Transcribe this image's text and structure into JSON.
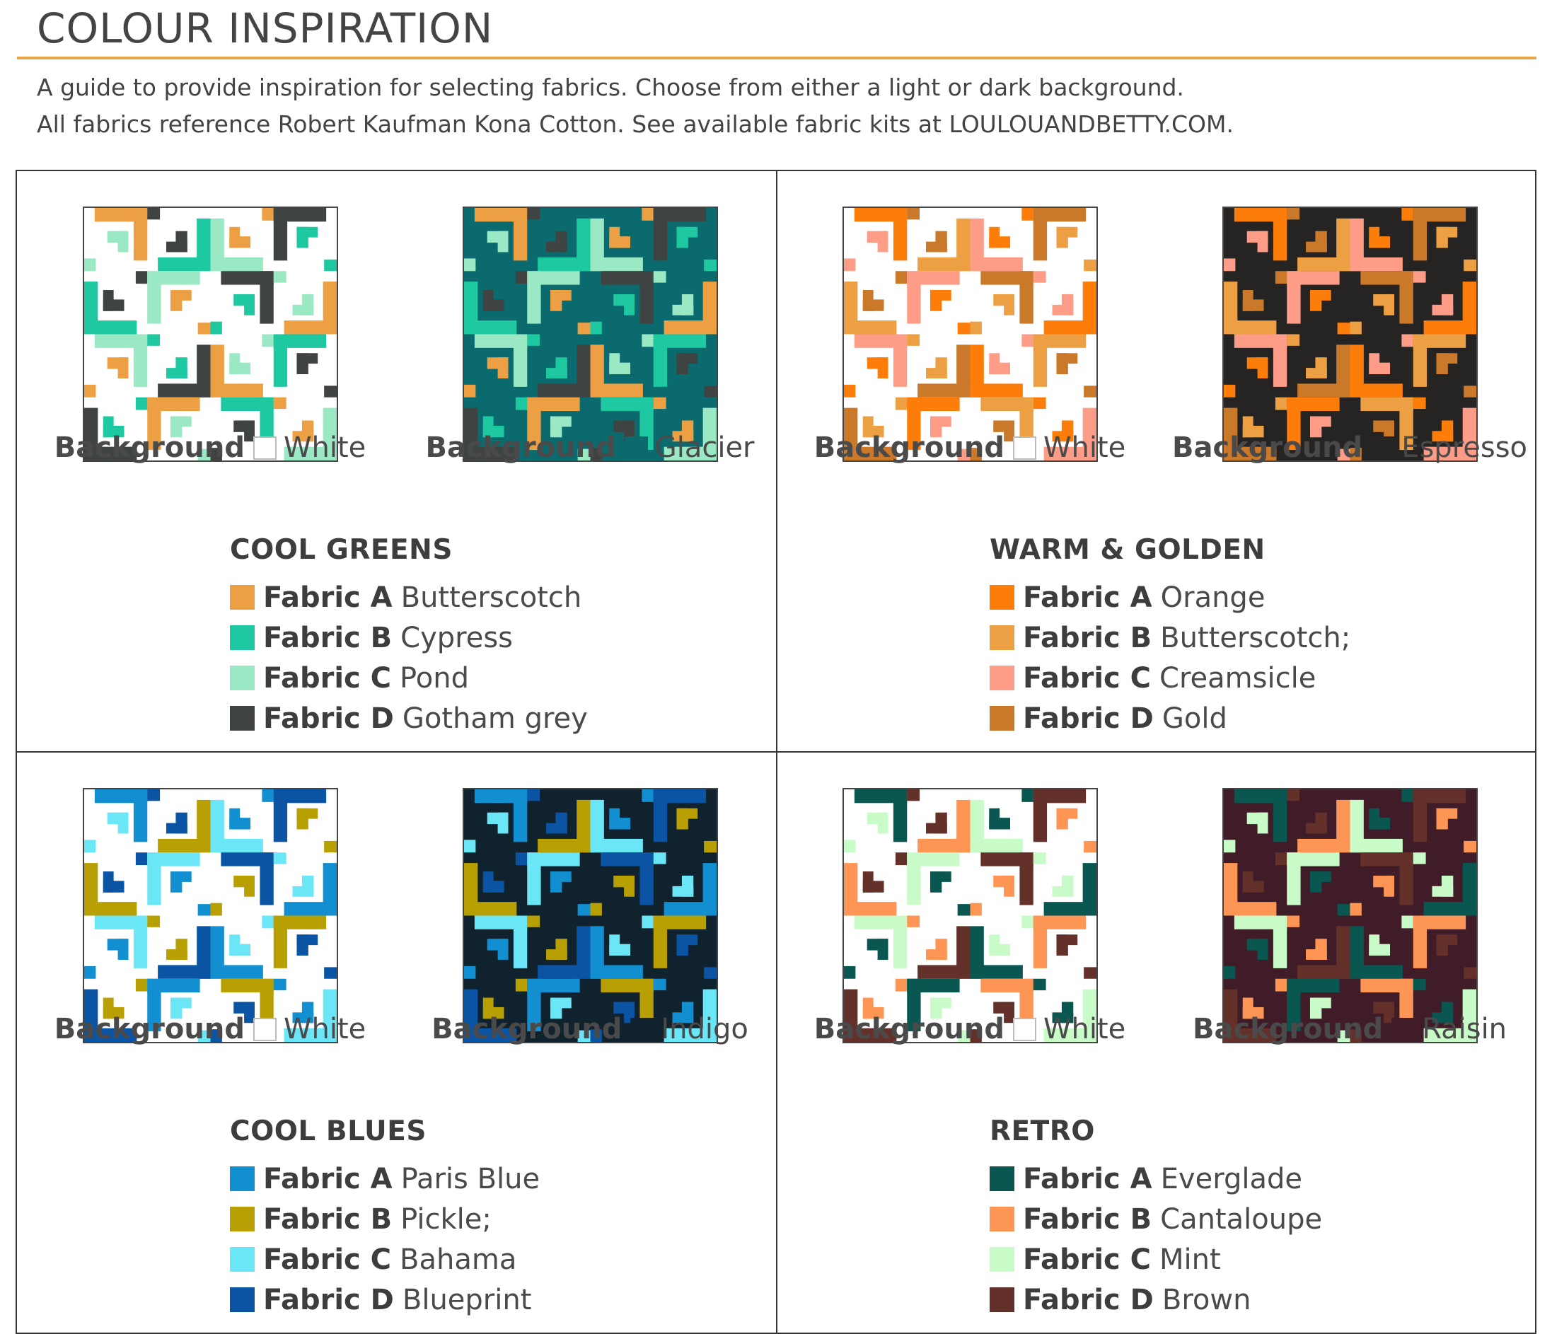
{
  "header": {
    "title": "COLOUR INSPIRATION",
    "line1": "A guide to provide inspiration for selecting fabrics. Choose from either a light or dark background.",
    "line2": "All fabrics reference Robert Kaufman Kona Cotton. See available fabric kits at LOULOUANDBETTY.COM."
  },
  "background_word": "Background",
  "quadrants": [
    {
      "title": "COOL GREENS",
      "backgrounds": [
        {
          "keyword": "Background",
          "name": "White",
          "color": "#ffffff"
        },
        {
          "keyword": "Background",
          "name": "Glacier",
          "color": "#0a6a6e"
        }
      ],
      "fabrics": [
        {
          "key": "Fabric A",
          "name": "Butterscotch",
          "color": "#eca043"
        },
        {
          "key": "Fabric B",
          "name": "Cypress",
          "color": "#1ec8a0"
        },
        {
          "key": "Fabric C",
          "name": "Pond",
          "color": "#9be8c4"
        },
        {
          "key": "Fabric D",
          "name": "Gotham grey",
          "color": "#3f4442"
        }
      ]
    },
    {
      "title": "WARM & GOLDEN",
      "backgrounds": [
        {
          "keyword": "Background",
          "name": "White",
          "color": "#ffffff"
        },
        {
          "keyword": "Background",
          "name": "Espresso",
          "color": "#262323"
        }
      ],
      "fabrics": [
        {
          "key": "Fabric A",
          "name": "Orange",
          "color": "#fd7d0b"
        },
        {
          "key": "Fabric B",
          "name": "Butterscotch;",
          "color": "#eca043"
        },
        {
          "key": "Fabric C",
          "name": "Creamsicle",
          "color": "#fd9d88"
        },
        {
          "key": "Fabric D",
          "name": "Gold",
          "color": "#c97929"
        }
      ]
    },
    {
      "title": "COOL BLUES",
      "backgrounds": [
        {
          "keyword": "Background",
          "name": "White",
          "color": "#ffffff"
        },
        {
          "keyword": "Background",
          "name": "Indigo",
          "color": "#10222e"
        }
      ],
      "fabrics": [
        {
          "key": "Fabric A",
          "name": "Paris Blue",
          "color": "#128fd0"
        },
        {
          "key": "Fabric B",
          "name": "Pickle;",
          "color": "#b8a004"
        },
        {
          "key": "Fabric C",
          "name": "Bahama",
          "color": "#6ae6f7"
        },
        {
          "key": "Fabric D",
          "name": "Blueprint",
          "color": "#0a54a3"
        }
      ]
    },
    {
      "title": "RETRO",
      "backgrounds": [
        {
          "keyword": "Background",
          "name": "White",
          "color": "#ffffff"
        },
        {
          "keyword": "Background",
          "name": "Raisin",
          "color": "#3f1c28"
        }
      ],
      "fabrics": [
        {
          "key": "Fabric A",
          "name": "Everglade",
          "color": "#0a5650"
        },
        {
          "key": "Fabric B",
          "name": "Cantaloupe",
          "color": "#fd9555"
        },
        {
          "key": "Fabric C",
          "name": "Mint",
          "color": "#c9fbc9"
        },
        {
          "key": "Fabric D",
          "name": "Brown",
          "color": "#64302a"
        }
      ]
    }
  ]
}
